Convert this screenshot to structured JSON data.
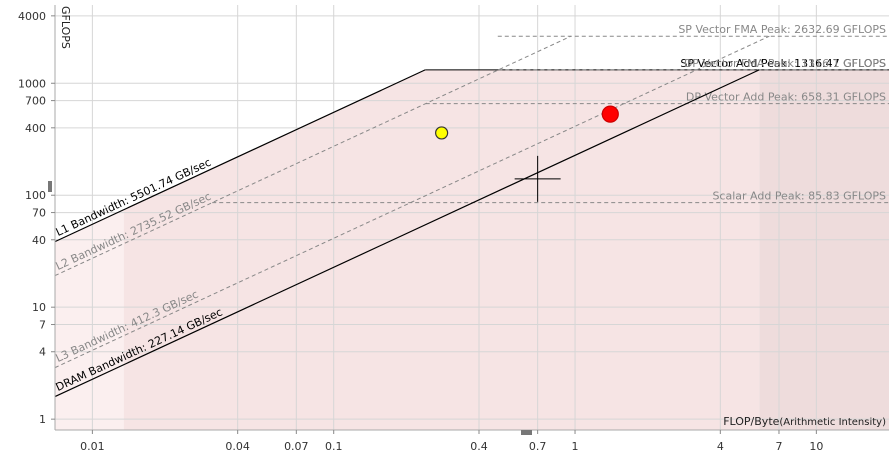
{
  "chart_data": {
    "type": "roofline",
    "xscale": "log",
    "yscale": "log",
    "xlim": [
      0.007,
      20
    ],
    "ylim": [
      0.8,
      5000
    ],
    "grid": true,
    "xlabel": "FLOP/Byte",
    "xlabel_suffix": "(Arithmetic Intensity)",
    "ylabel": "GFLOPS",
    "x_ticks": [
      {
        "value": 0.01,
        "label": "0.01"
      },
      {
        "value": 0.04,
        "label": "0.04"
      },
      {
        "value": 0.07,
        "label": "0.07"
      },
      {
        "value": 0.1,
        "label": "0.1"
      },
      {
        "value": 0.4,
        "label": "0.4"
      },
      {
        "value": 0.7,
        "label": "0.7"
      },
      {
        "value": 1,
        "label": "1"
      },
      {
        "value": 4,
        "label": "4"
      },
      {
        "value": 7,
        "label": "7"
      },
      {
        "value": 10,
        "label": "10"
      }
    ],
    "y_ticks": [
      {
        "value": 1,
        "label": "1"
      },
      {
        "value": 4,
        "label": "4"
      },
      {
        "value": 7,
        "label": "7"
      },
      {
        "value": 10,
        "label": "10"
      },
      {
        "value": 40,
        "label": "40"
      },
      {
        "value": 70,
        "label": "70"
      },
      {
        "value": 100,
        "label": "100"
      },
      {
        "value": 400,
        "label": "400"
      },
      {
        "value": 700,
        "label": "700"
      },
      {
        "value": 1000,
        "label": "1000"
      },
      {
        "value": 4000,
        "label": "4000"
      }
    ],
    "bandwidth_roofs": [
      {
        "label": "L1 Bandwidth: 5501.74 GB/sec",
        "bandwidth": 5501.74,
        "ceiling": 1316.47,
        "style": "solid",
        "color": "#000000",
        "label_x": [
          0.0072,
          0.165
        ]
      },
      {
        "label": "L2 Bandwidth: 2735.52 GB/sec",
        "bandwidth": 2735.52,
        "ceiling": 2632.69,
        "style": "dashed",
        "color": "#888888",
        "label_x": [
          0.0072,
          0.165
        ]
      },
      {
        "label": "L3 Bandwidth: 412.3 GB/sec",
        "bandwidth": 412.3,
        "ceiling": 2632.69,
        "style": "dashed",
        "color": "#888888",
        "label_x": [
          0.0072,
          0.14
        ]
      },
      {
        "label": "DRAM Bandwidth: 227.14 GB/sec",
        "bandwidth": 227.14,
        "ceiling": 1316.47,
        "style": "solid",
        "color": "#000000",
        "label_x": [
          0.0072,
          0.175
        ]
      }
    ],
    "compute_roofs": [
      {
        "label": "SP Vector FMA Peak: 2632.69 GFLOPS",
        "value": 2632.69,
        "style": "dashed",
        "color": "#888888"
      },
      {
        "label": "SP Vector Add Peak: 1316.47 GFLOPS",
        "value": 1316.47,
        "style": "solid",
        "color": "#000000"
      },
      {
        "label": "DP Vector FMA Peak: 1316.1 GFLOPS",
        "value": 1316.1,
        "style": "dashed",
        "color": "#888888"
      },
      {
        "label": "DP Vector Add Peak: 658.31 GFLOPS",
        "value": 658.31,
        "style": "dashed",
        "color": "#888888"
      },
      {
        "label": "Scalar Add Peak: 85.83 GFLOPS",
        "value": 85.83,
        "style": "dashed",
        "color": "#888888"
      }
    ],
    "points": [
      {
        "x": 0.28,
        "y": 360,
        "color": "#ffff00",
        "stroke": "#333333",
        "size": 6
      },
      {
        "x": 1.4,
        "y": 530,
        "color": "#ff0000",
        "stroke": "#cc0000",
        "size": 8
      }
    ],
    "crosshair": {
      "x": 0.7,
      "y": 140
    },
    "shading_colors": {
      "pale": "#fbefef",
      "mid": "#f6e4e4",
      "dark": "#eedcdc"
    }
  }
}
